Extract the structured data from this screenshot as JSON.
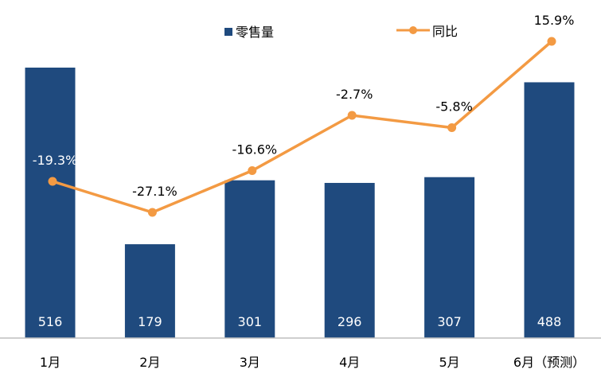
{
  "chart_data": {
    "type": "bar+line",
    "categories": [
      "1月",
      "2月",
      "3月",
      "4月",
      "5月",
      "6月（预测）"
    ],
    "series": [
      {
        "name": "零售量",
        "type": "bar",
        "values": [
          516,
          179,
          301,
          296,
          307,
          488
        ],
        "color": "#1F4A7E"
      },
      {
        "name": "同比",
        "type": "line",
        "axis": "secondary",
        "values": [
          -19.3,
          -27.1,
          -16.6,
          -2.7,
          -5.8,
          15.9
        ],
        "labels": [
          "-19.3%",
          "-27.1%",
          "-16.6%",
          "-2.7%",
          "-5.8%",
          "15.9%"
        ],
        "color": "#F39A43"
      }
    ],
    "legend": "top",
    "grid": false
  }
}
